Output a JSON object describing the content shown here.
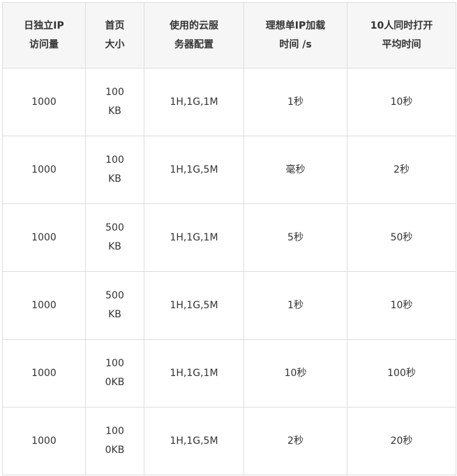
{
  "table": {
    "headers": [
      "日独立IP\n访问量",
      "首页\n大小",
      "使用的云服\n务器配置",
      "理想单IP加载\n时间 /s",
      "10人同时打开\n平均时间"
    ],
    "rows": [
      [
        "1000",
        "100\nKB",
        "1H,1G,1M",
        "1秒",
        "10秒"
      ],
      [
        "1000",
        "100\nKB",
        "1H,1G,5M",
        "毫秒",
        "2秒"
      ],
      [
        "1000",
        "500\nKB",
        "1H,1G,1M",
        "5秒",
        "50秒"
      ],
      [
        "1000",
        "500\nKB",
        "1H,1G,5M",
        "1秒",
        "10秒"
      ],
      [
        "1000",
        "100\n0KB",
        "1H,1G,1M",
        "10秒",
        "100秒"
      ],
      [
        "1000",
        "100\n0KB",
        "1H,1G,5M",
        "2秒",
        "20秒"
      ]
    ]
  }
}
